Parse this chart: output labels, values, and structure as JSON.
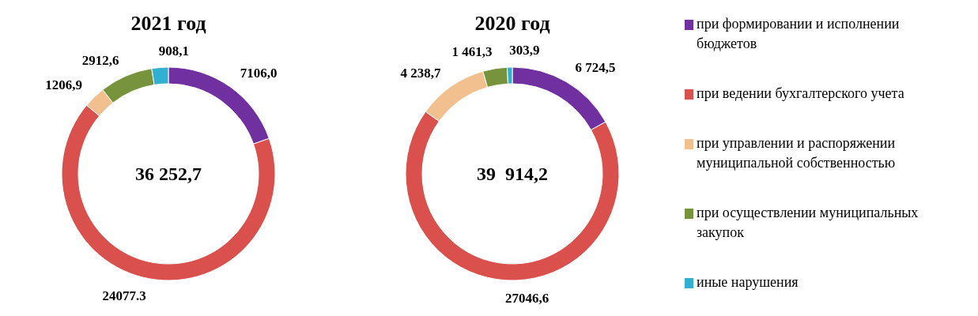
{
  "chart_data": [
    {
      "type": "donut",
      "title": "2021 год",
      "categories": [
        null,
        null,
        null,
        null,
        null
      ],
      "values": [
        7106.0,
        24077.3,
        1206.9,
        2912.6,
        908.1
      ],
      "value_labels": [
        "7106,0",
        "24077.3",
        "1206,9",
        "2912,6",
        "908,1"
      ],
      "colors": [
        "#7030a0",
        "#d9504c",
        "#f2c08e",
        "#77933c",
        "#31b0d0"
      ],
      "annotations": [
        "36 252,7"
      ],
      "legend": false
    },
    {
      "type": "donut",
      "title": "2020 год",
      "categories": [
        "при формировании и исполнении бюджетов",
        "при ведении бухгалтерского учета",
        "при управлении и распоряжении муниципальной собственностью",
        "при осуществлении муниципальных закупок",
        "иные нарушения"
      ],
      "values": [
        6724.5,
        27046.6,
        4238.7,
        1461.3,
        303.9
      ],
      "value_labels": [
        "6 724,5",
        "27046,6",
        "4 238,7",
        "1 461,3",
        "303,9"
      ],
      "colors": [
        "#7030a0",
        "#d9504c",
        "#f2c08e",
        "#77933c",
        "#31b0d0"
      ],
      "annotations": [
        "39  914,2"
      ],
      "legend": "right"
    }
  ]
}
